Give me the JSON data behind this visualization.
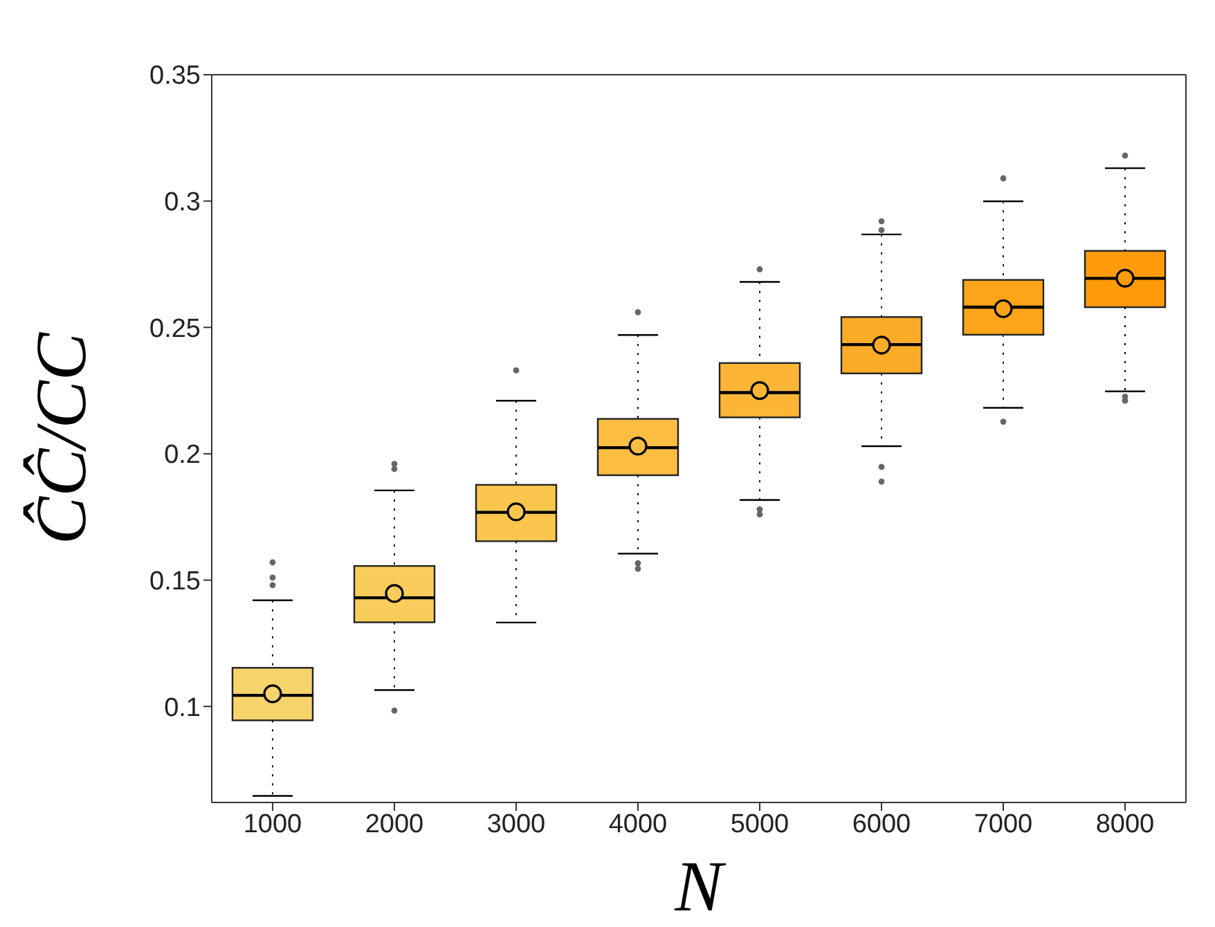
{
  "chart_data": {
    "type": "box",
    "xlabel": "N",
    "ylabel": "ĈĈ/CC",
    "categories": [
      "1000",
      "2000",
      "3000",
      "4000",
      "5000",
      "6000",
      "7000",
      "8000"
    ],
    "colors": [
      "#f7d36b",
      "#f9cc5c",
      "#fac64e",
      "#fbbe41",
      "#fcb534",
      "#fdac27",
      "#fea419",
      "#ff9b0a"
    ],
    "boxes": [
      {
        "low": 0.0646,
        "q1": 0.0945,
        "median": 0.1044,
        "q3": 0.1153,
        "high": 0.142,
        "mean": 0.105,
        "outliers": [
          0.157,
          0.151,
          0.148
        ]
      },
      {
        "low": 0.1065,
        "q1": 0.1333,
        "median": 0.143,
        "q3": 0.1556,
        "high": 0.1855,
        "mean": 0.1447,
        "outliers": [
          0.196,
          0.194,
          0.0984
        ]
      },
      {
        "low": 0.1332,
        "q1": 0.1654,
        "median": 0.1768,
        "q3": 0.1877,
        "high": 0.221,
        "mean": 0.177,
        "outliers": [
          0.233
        ]
      },
      {
        "low": 0.1605,
        "q1": 0.1915,
        "median": 0.2024,
        "q3": 0.2138,
        "high": 0.247,
        "mean": 0.203,
        "outliers": [
          0.256,
          0.1567,
          0.1545
        ]
      },
      {
        "low": 0.1817,
        "q1": 0.2144,
        "median": 0.2242,
        "q3": 0.2359,
        "high": 0.268,
        "mean": 0.225,
        "outliers": [
          0.273,
          0.178,
          0.176
        ]
      },
      {
        "low": 0.203,
        "q1": 0.2318,
        "median": 0.2432,
        "q3": 0.2541,
        "high": 0.2868,
        "mean": 0.243,
        "outliers": [
          0.292,
          0.2885,
          0.1948,
          0.189
        ]
      },
      {
        "low": 0.2182,
        "q1": 0.2471,
        "median": 0.258,
        "q3": 0.2688,
        "high": 0.2999,
        "mean": 0.2574,
        "outliers": [
          0.309,
          0.2127
        ]
      },
      {
        "low": 0.2247,
        "q1": 0.258,
        "median": 0.2694,
        "q3": 0.2803,
        "high": 0.313,
        "mean": 0.2695,
        "outliers": [
          0.318,
          0.2226,
          0.221
        ]
      }
    ],
    "ylim": [
      0.062,
      0.35
    ],
    "yticks": [
      0.1,
      0.15,
      0.2,
      0.25,
      0.3,
      0.35
    ]
  }
}
